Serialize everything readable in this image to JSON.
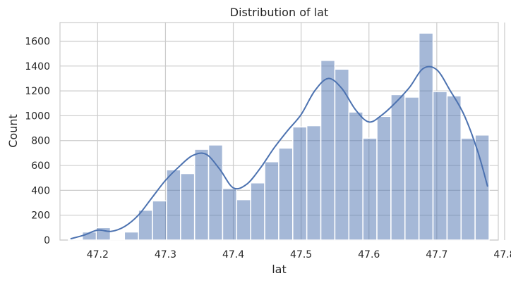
{
  "chart_data": {
    "type": "bar",
    "title": "Distribution of lat",
    "xlabel": "lat",
    "ylabel": "Count",
    "xlim": [
      47.1445,
      47.7907
    ],
    "ylim": [
      0,
      1750
    ],
    "xticks": [
      47.2,
      47.3,
      47.4,
      47.5,
      47.6,
      47.7,
      47.8
    ],
    "xtick_labels": [
      "47.2",
      "47.3",
      "47.4",
      "47.5",
      "47.6",
      "47.7",
      "47.8"
    ],
    "yticks": [
      0,
      200,
      400,
      600,
      800,
      1000,
      1200,
      1400,
      1600
    ],
    "ytick_labels": [
      "0",
      "200",
      "400",
      "600",
      "800",
      "1000",
      "1200",
      "1400",
      "1600"
    ],
    "grid": true,
    "bar_color": "#4c72b0",
    "kde_color": "#4c72b0",
    "bins": {
      "start": 47.1568,
      "width": 0.02068,
      "counts": [
        5,
        65,
        100,
        5,
        65,
        240,
        315,
        565,
        535,
        730,
        765,
        415,
        325,
        460,
        630,
        740,
        910,
        920,
        1445,
        1375,
        1030,
        820,
        995,
        1170,
        1150,
        1665,
        1195,
        1160,
        820,
        845
      ]
    },
    "kde": {
      "x": [
        47.16,
        47.18,
        47.2,
        47.22,
        47.24,
        47.26,
        47.28,
        47.3,
        47.32,
        47.34,
        47.36,
        47.38,
        47.4,
        47.42,
        47.44,
        47.46,
        47.48,
        47.5,
        47.52,
        47.54,
        47.56,
        47.58,
        47.6,
        47.62,
        47.64,
        47.66,
        47.68,
        47.7,
        47.72,
        47.74,
        47.76,
        47.775
      ],
      "y": [
        10,
        40,
        80,
        70,
        110,
        200,
        340,
        480,
        590,
        680,
        690,
        570,
        420,
        450,
        580,
        740,
        880,
        1010,
        1200,
        1300,
        1220,
        1050,
        950,
        1010,
        1110,
        1230,
        1380,
        1370,
        1200,
        1010,
        720,
        430
      ]
    }
  }
}
